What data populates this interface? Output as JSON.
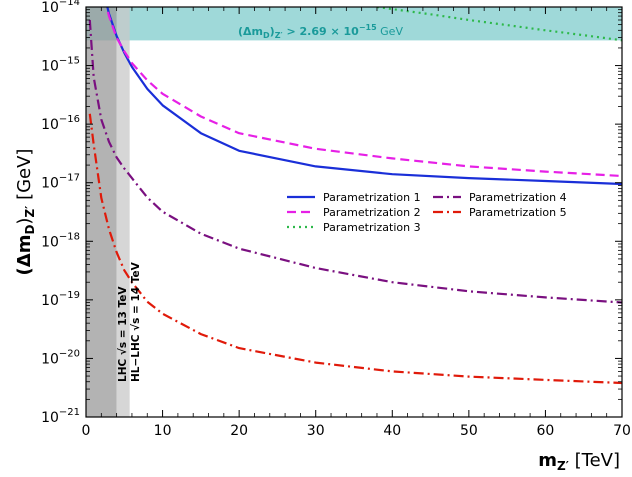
{
  "chart_data": {
    "type": "line",
    "xlabel": {
      "main": "m",
      "sub": "Z′",
      "unit": "[TeV]"
    },
    "ylabel": {
      "main": "(Δm",
      "sub1": "D",
      "close": ")",
      "sub2": "Z′",
      "unit": "[GeV]"
    },
    "xlim": [
      0,
      70
    ],
    "ylim": [
      1e-21,
      1e-14
    ],
    "yscale": "log",
    "xticks": [
      "0",
      "10",
      "20",
      "30",
      "40",
      "50",
      "60",
      "70"
    ],
    "yticks": [
      {
        "base": "10",
        "exp": "−14"
      },
      {
        "base": "10",
        "exp": "−15"
      },
      {
        "base": "10",
        "exp": "−16"
      },
      {
        "base": "10",
        "exp": "−17"
      },
      {
        "base": "10",
        "exp": "−18"
      },
      {
        "base": "10",
        "exp": "−19"
      },
      {
        "base": "10",
        "exp": "−20"
      },
      {
        "base": "10",
        "exp": "−21"
      }
    ],
    "legend_placement": "center-right",
    "series": [
      {
        "name": "Parametrization 1",
        "color": "#1a2fd8",
        "dash": "solid",
        "x": [
          2,
          3,
          4,
          5,
          6,
          8,
          10,
          15,
          20,
          30,
          40,
          50,
          60,
          70
        ],
        "values": [
          2.6e-14,
          7.7e-15,
          3.2e-15,
          1.65e-15,
          9.5e-16,
          4e-16,
          2.1e-16,
          7e-17,
          3.5e-17,
          1.9e-17,
          1.4e-17,
          1.2e-17,
          1.07e-17,
          9.5e-18
        ]
      },
      {
        "name": "Parametrization 2",
        "color": "#e620e6",
        "dash": "dashed",
        "x": [
          2,
          3,
          4,
          5,
          6,
          8,
          10,
          15,
          20,
          30,
          40,
          50,
          60,
          70
        ],
        "values": [
          2.4e-14,
          7e-15,
          3e-15,
          1.75e-15,
          1.1e-15,
          5.6e-16,
          3.3e-16,
          1.35e-16,
          7e-17,
          3.8e-17,
          2.6e-17,
          1.9e-17,
          1.55e-17,
          1.3e-17
        ]
      },
      {
        "name": "Parametrization 3",
        "color": "#2db84a",
        "dash": "dotted",
        "x": [
          38,
          40,
          45,
          50,
          55,
          60,
          65,
          70
        ],
        "values": [
          1e-14,
          9.2e-15,
          7.5e-15,
          6e-15,
          4.9e-15,
          4e-15,
          3.3e-15,
          2.7e-15
        ]
      },
      {
        "name": "Parametrization 4",
        "color": "#7a1080",
        "dash": "dashdot",
        "x": [
          0.5,
          1,
          2,
          3,
          4,
          5,
          6,
          8,
          10,
          15,
          20,
          30,
          40,
          50,
          60,
          70
        ],
        "values": [
          6e-15,
          6.3e-16,
          1.2e-16,
          5e-17,
          2.7e-17,
          1.75e-17,
          1.2e-17,
          5.6e-18,
          3.2e-18,
          1.35e-18,
          7.5e-19,
          3.5e-19,
          2e-19,
          1.4e-19,
          1.1e-19,
          9e-20
        ]
      },
      {
        "name": "Parametrization 5",
        "color": "#e01a0a",
        "dash": "dashdot",
        "x": [
          0.5,
          1,
          2,
          3,
          4,
          5,
          6,
          8,
          10,
          15,
          20,
          30,
          40,
          50,
          60,
          70
        ],
        "values": [
          1.5e-16,
          4.5e-17,
          5.5e-18,
          1.6e-18,
          6.5e-19,
          3.2e-19,
          2e-19,
          9.3e-20,
          5.8e-20,
          2.6e-20,
          1.5e-20,
          8.5e-21,
          6e-21,
          4.9e-21,
          4.3e-21,
          3.8e-21
        ]
      }
    ],
    "bands": {
      "horizontal": {
        "ymin": 2.69e-15,
        "ymax": 1e-14,
        "color": "#5fbfbf",
        "label": {
          "main": "(Δm",
          "sub": "D",
          "close": ")",
          "sub2": "Z′",
          "text": " > 2.69 × 10",
          "exp": "−15",
          "unit": " GeV"
        }
      },
      "vertical_lhc": {
        "xmin": 0,
        "xmax": 4.0,
        "color": "#999999",
        "label_text": "LHC √s = 13 TeV"
      },
      "vertical_hllhc": {
        "xmin": 4.0,
        "xmax": 5.7,
        "color": "#c8c8c8",
        "label_text": "HL−LHC √s = 14 TeV"
      }
    }
  }
}
